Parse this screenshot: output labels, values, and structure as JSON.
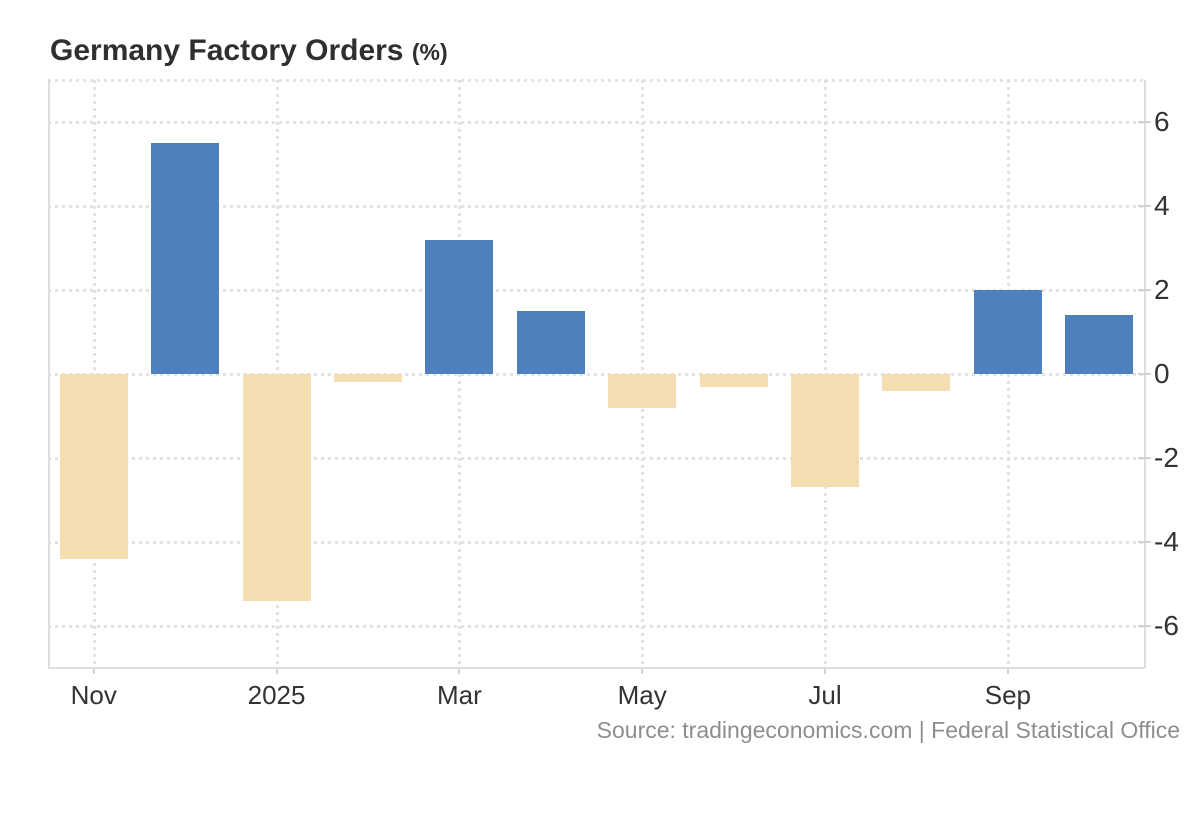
{
  "title": {
    "main": "Germany Factory Orders",
    "unit": "(%)"
  },
  "source": "Source: tradingeconomics.com | Federal Statistical Office",
  "colors": {
    "positive_bar": "#4e80bd",
    "negative_bar": "#f4deb1",
    "gridline": "#e2e2e2",
    "axis_line": "#dedede",
    "axis_text": "#333333",
    "source_text": "#8e8e8e",
    "title_text": "#2f2f2f"
  },
  "chart_data": {
    "type": "bar",
    "title": "Germany Factory Orders (%)",
    "xlabel": "",
    "ylabel": "",
    "categories": [
      "Nov 2024",
      "Dec 2024",
      "Jan 2025",
      "Feb 2025",
      "Mar 2025",
      "Apr 2025",
      "May 2025",
      "Jun 2025",
      "Jul 2025",
      "Aug 2025",
      "Sep 2025",
      "Oct 2025"
    ],
    "values": [
      -4.4,
      5.5,
      -5.4,
      -0.2,
      3.2,
      1.5,
      -0.8,
      -0.3,
      -2.7,
      -0.4,
      2.0,
      1.4
    ],
    "y_ticks": [
      6,
      4,
      2,
      0,
      -2,
      -4,
      -6
    ],
    "ylim": [
      -7,
      7
    ],
    "x_tick_labels": [
      "Nov",
      "2025",
      "Mar",
      "May",
      "Jul",
      "Sep"
    ],
    "x_tick_bar_indices": [
      0,
      2,
      4,
      6,
      8,
      10
    ],
    "grid": "dotted",
    "legend_position": "none",
    "y_axis_side": "right"
  }
}
